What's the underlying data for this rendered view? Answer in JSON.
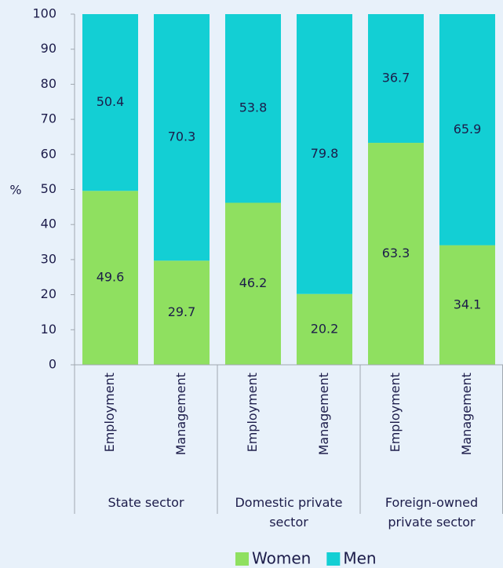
{
  "chart_data": {
    "type": "stacked_bar",
    "y_label": "%",
    "categories": [
      "Employment",
      "Management",
      "Employment",
      "Management",
      "Employment",
      "Management"
    ],
    "groups": [
      "State sector",
      "Domestic private sector",
      "Foreign-owned private sector"
    ],
    "series": [
      {
        "name": "Women",
        "color": "#8fe060",
        "values": [
          49.6,
          29.7,
          46.2,
          20.2,
          63.3,
          34.1
        ]
      },
      {
        "name": "Men",
        "color": "#13cfd4",
        "values": [
          50.4,
          70.3,
          53.8,
          79.8,
          36.7,
          65.9
        ]
      }
    ],
    "ylim": [
      0,
      100
    ],
    "yticks": [
      0,
      10,
      20,
      30,
      40,
      50,
      60,
      70,
      80,
      90,
      100
    ],
    "legend": "bottom"
  }
}
